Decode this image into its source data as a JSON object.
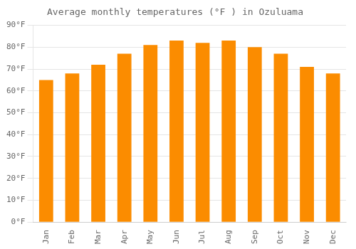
{
  "chart_data": {
    "type": "bar",
    "title": "Average monthly temperatures (°F ) in Ozuluama",
    "categories": [
      "Jan",
      "Feb",
      "Mar",
      "Apr",
      "May",
      "Jun",
      "Jul",
      "Aug",
      "Sep",
      "Oct",
      "Nov",
      "Dec"
    ],
    "values": [
      65,
      68,
      72,
      77,
      81,
      83,
      82,
      83,
      80,
      77,
      71,
      68
    ],
    "color": "#FB8C00",
    "ylim": [
      0,
      90
    ],
    "yticks": [
      {
        "value": 0,
        "label": "0°F"
      },
      {
        "value": 10,
        "label": "10°F"
      },
      {
        "value": 20,
        "label": "20°F"
      },
      {
        "value": 30,
        "label": "30°F"
      },
      {
        "value": 40,
        "label": "40°F"
      },
      {
        "value": 50,
        "label": "50°F"
      },
      {
        "value": 60,
        "label": "60°F"
      },
      {
        "value": 70,
        "label": "70°F"
      },
      {
        "value": 80,
        "label": "80°F"
      },
      {
        "value": 90,
        "label": "90°F"
      }
    ],
    "grid": true
  }
}
